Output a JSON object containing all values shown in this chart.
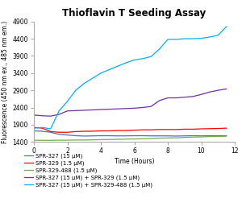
{
  "title": "Thioflavin T Seeding Assay",
  "xlabel": "Time (Hours)",
  "ylabel": "Fluorescence (450 nm ex., 485 nm em.)",
  "xlim": [
    0,
    12
  ],
  "ylim": [
    1400,
    4900
  ],
  "yticks": [
    1400,
    1900,
    2400,
    2900,
    3400,
    3900,
    4400,
    4900
  ],
  "xticks": [
    0,
    2,
    4,
    6,
    8,
    10,
    12
  ],
  "series": [
    {
      "label": "SPR-327 (15 μM)",
      "color": "#4472c4",
      "x": [
        0,
        0.5,
        1,
        1.5,
        2,
        2.5,
        3,
        3.5,
        4,
        4.5,
        5,
        5.5,
        6,
        6.5,
        7,
        7.5,
        8,
        8.5,
        9,
        9.5,
        10,
        10.5,
        11,
        11.5
      ],
      "y": [
        1720,
        1710,
        1680,
        1620,
        1600,
        1580,
        1570,
        1575,
        1580,
        1580,
        1575,
        1575,
        1580,
        1580,
        1575,
        1575,
        1575,
        1570,
        1575,
        1580,
        1575,
        1580,
        1580,
        1580
      ]
    },
    {
      "label": "SPR-329 (1.5 μM)",
      "color": "#ff0000",
      "x": [
        0,
        0.5,
        1,
        1.5,
        2,
        2.5,
        3,
        3.5,
        4,
        4.5,
        5,
        5.5,
        6,
        6.5,
        7,
        7.5,
        8,
        8.5,
        9,
        9.5,
        10,
        10.5,
        11,
        11.5
      ],
      "y": [
        1820,
        1800,
        1700,
        1680,
        1680,
        1700,
        1710,
        1710,
        1720,
        1720,
        1730,
        1730,
        1740,
        1750,
        1750,
        1760,
        1760,
        1760,
        1770,
        1770,
        1780,
        1785,
        1790,
        1800
      ]
    },
    {
      "label": "SPR-329-488 (1.5 μM)",
      "color": "#70ad47",
      "x": [
        0,
        0.5,
        1,
        1.5,
        2,
        2.5,
        3,
        3.5,
        4,
        4.5,
        5,
        5.5,
        6,
        6.5,
        7,
        7.5,
        8,
        8.5,
        9,
        9.5,
        10,
        10.5,
        11,
        11.5
      ],
      "y": [
        1450,
        1445,
        1445,
        1450,
        1450,
        1455,
        1455,
        1460,
        1465,
        1470,
        1475,
        1480,
        1485,
        1490,
        1500,
        1510,
        1515,
        1520,
        1530,
        1540,
        1545,
        1555,
        1560,
        1565
      ]
    },
    {
      "label": "SPR-327 (15 μM) + SPR-329 (1.5 μM)",
      "color": "#7030a0",
      "x": [
        0,
        0.5,
        1,
        1.5,
        2,
        2.5,
        3,
        3.5,
        4,
        4.5,
        5,
        5.5,
        6,
        6.5,
        7,
        7.5,
        8,
        8.5,
        9,
        9.5,
        10,
        10.5,
        11,
        11.5
      ],
      "y": [
        2180,
        2160,
        2150,
        2200,
        2300,
        2310,
        2320,
        2330,
        2340,
        2350,
        2360,
        2370,
        2380,
        2400,
        2430,
        2600,
        2680,
        2680,
        2700,
        2720,
        2780,
        2850,
        2900,
        2940
      ]
    },
    {
      "label": "SPR-327 (15 μM) + SPR-329-488 (1.5 μM)",
      "color": "#00b0f0",
      "x": [
        0,
        0.5,
        1,
        1.5,
        2,
        2.5,
        3,
        3.5,
        4,
        4.5,
        5,
        5.5,
        6,
        6.5,
        7,
        7.5,
        8,
        8.5,
        9,
        9.5,
        10,
        10.5,
        11,
        11.5
      ],
      "y": [
        1800,
        1820,
        1780,
        2300,
        2580,
        2900,
        3100,
        3250,
        3400,
        3500,
        3600,
        3700,
        3780,
        3820,
        3880,
        4100,
        4380,
        4380,
        4400,
        4400,
        4410,
        4450,
        4500,
        4750
      ]
    }
  ],
  "background_color": "#ffffff",
  "legend_fontsize": 5.0,
  "title_fontsize": 8.5,
  "axis_label_fontsize": 5.5,
  "tick_fontsize": 5.5
}
